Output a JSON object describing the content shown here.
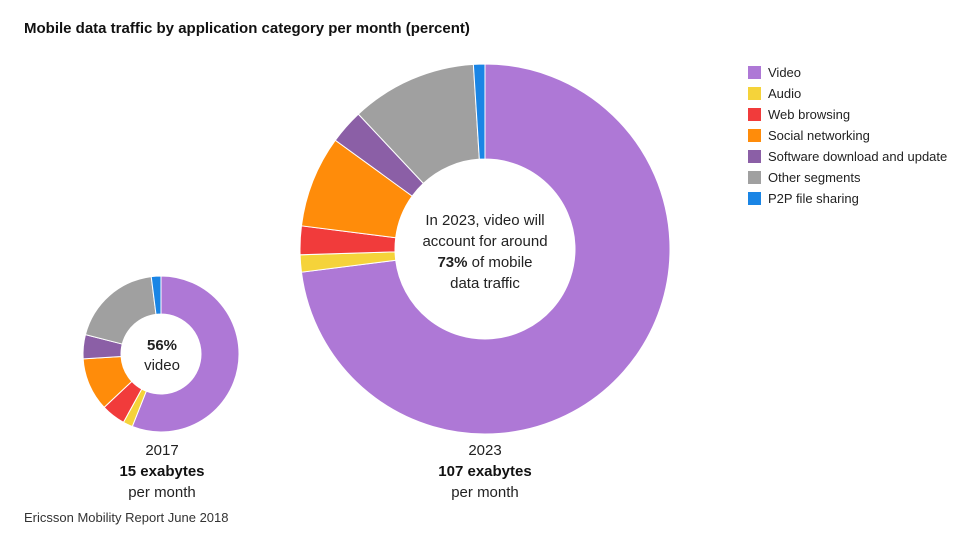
{
  "title": "Mobile data traffic by application category per month (percent)",
  "source": "Ericsson Mobility Report June 2018",
  "legend": [
    {
      "label": "Video",
      "color": "#ae78d6"
    },
    {
      "label": "Audio",
      "color": "#f5d33a"
    },
    {
      "label": "Web browsing",
      "color": "#f13b3b"
    },
    {
      "label": "Social networking",
      "color": "#ff8c0a"
    },
    {
      "label": "Software download and update",
      "color": "#8b5fa6"
    },
    {
      "label": "Other segments",
      "color": "#a0a0a0"
    },
    {
      "label": "P2P file sharing",
      "color": "#1a85e5"
    }
  ],
  "donut_2017": {
    "center_value": "56%",
    "center_text": "video",
    "year": "2017",
    "total": "15 exabytes",
    "unit": "per month"
  },
  "donut_2023": {
    "center_line1": "In 2023, video will",
    "center_line2": "account for around",
    "center_value": "73%",
    "center_line3": "of mobile",
    "center_line4": "data traffic",
    "year": "2023",
    "total": "107 exabytes",
    "unit": "per month"
  },
  "chart_data": [
    {
      "type": "pie",
      "title": "2017",
      "categories": [
        "Video",
        "Audio",
        "Web browsing",
        "Social networking",
        "Software download and update",
        "Other segments",
        "P2P file sharing"
      ],
      "values": [
        56,
        2,
        5,
        11,
        5,
        19,
        2
      ],
      "total": "15 exabytes per month"
    },
    {
      "type": "pie",
      "title": "2023",
      "categories": [
        "Video",
        "Audio",
        "Web browsing",
        "Social networking",
        "Software download and update",
        "Other segments",
        "P2P file sharing"
      ],
      "values": [
        73,
        1.5,
        2.5,
        8,
        3,
        11,
        1
      ],
      "total": "107 exabytes per month"
    }
  ]
}
